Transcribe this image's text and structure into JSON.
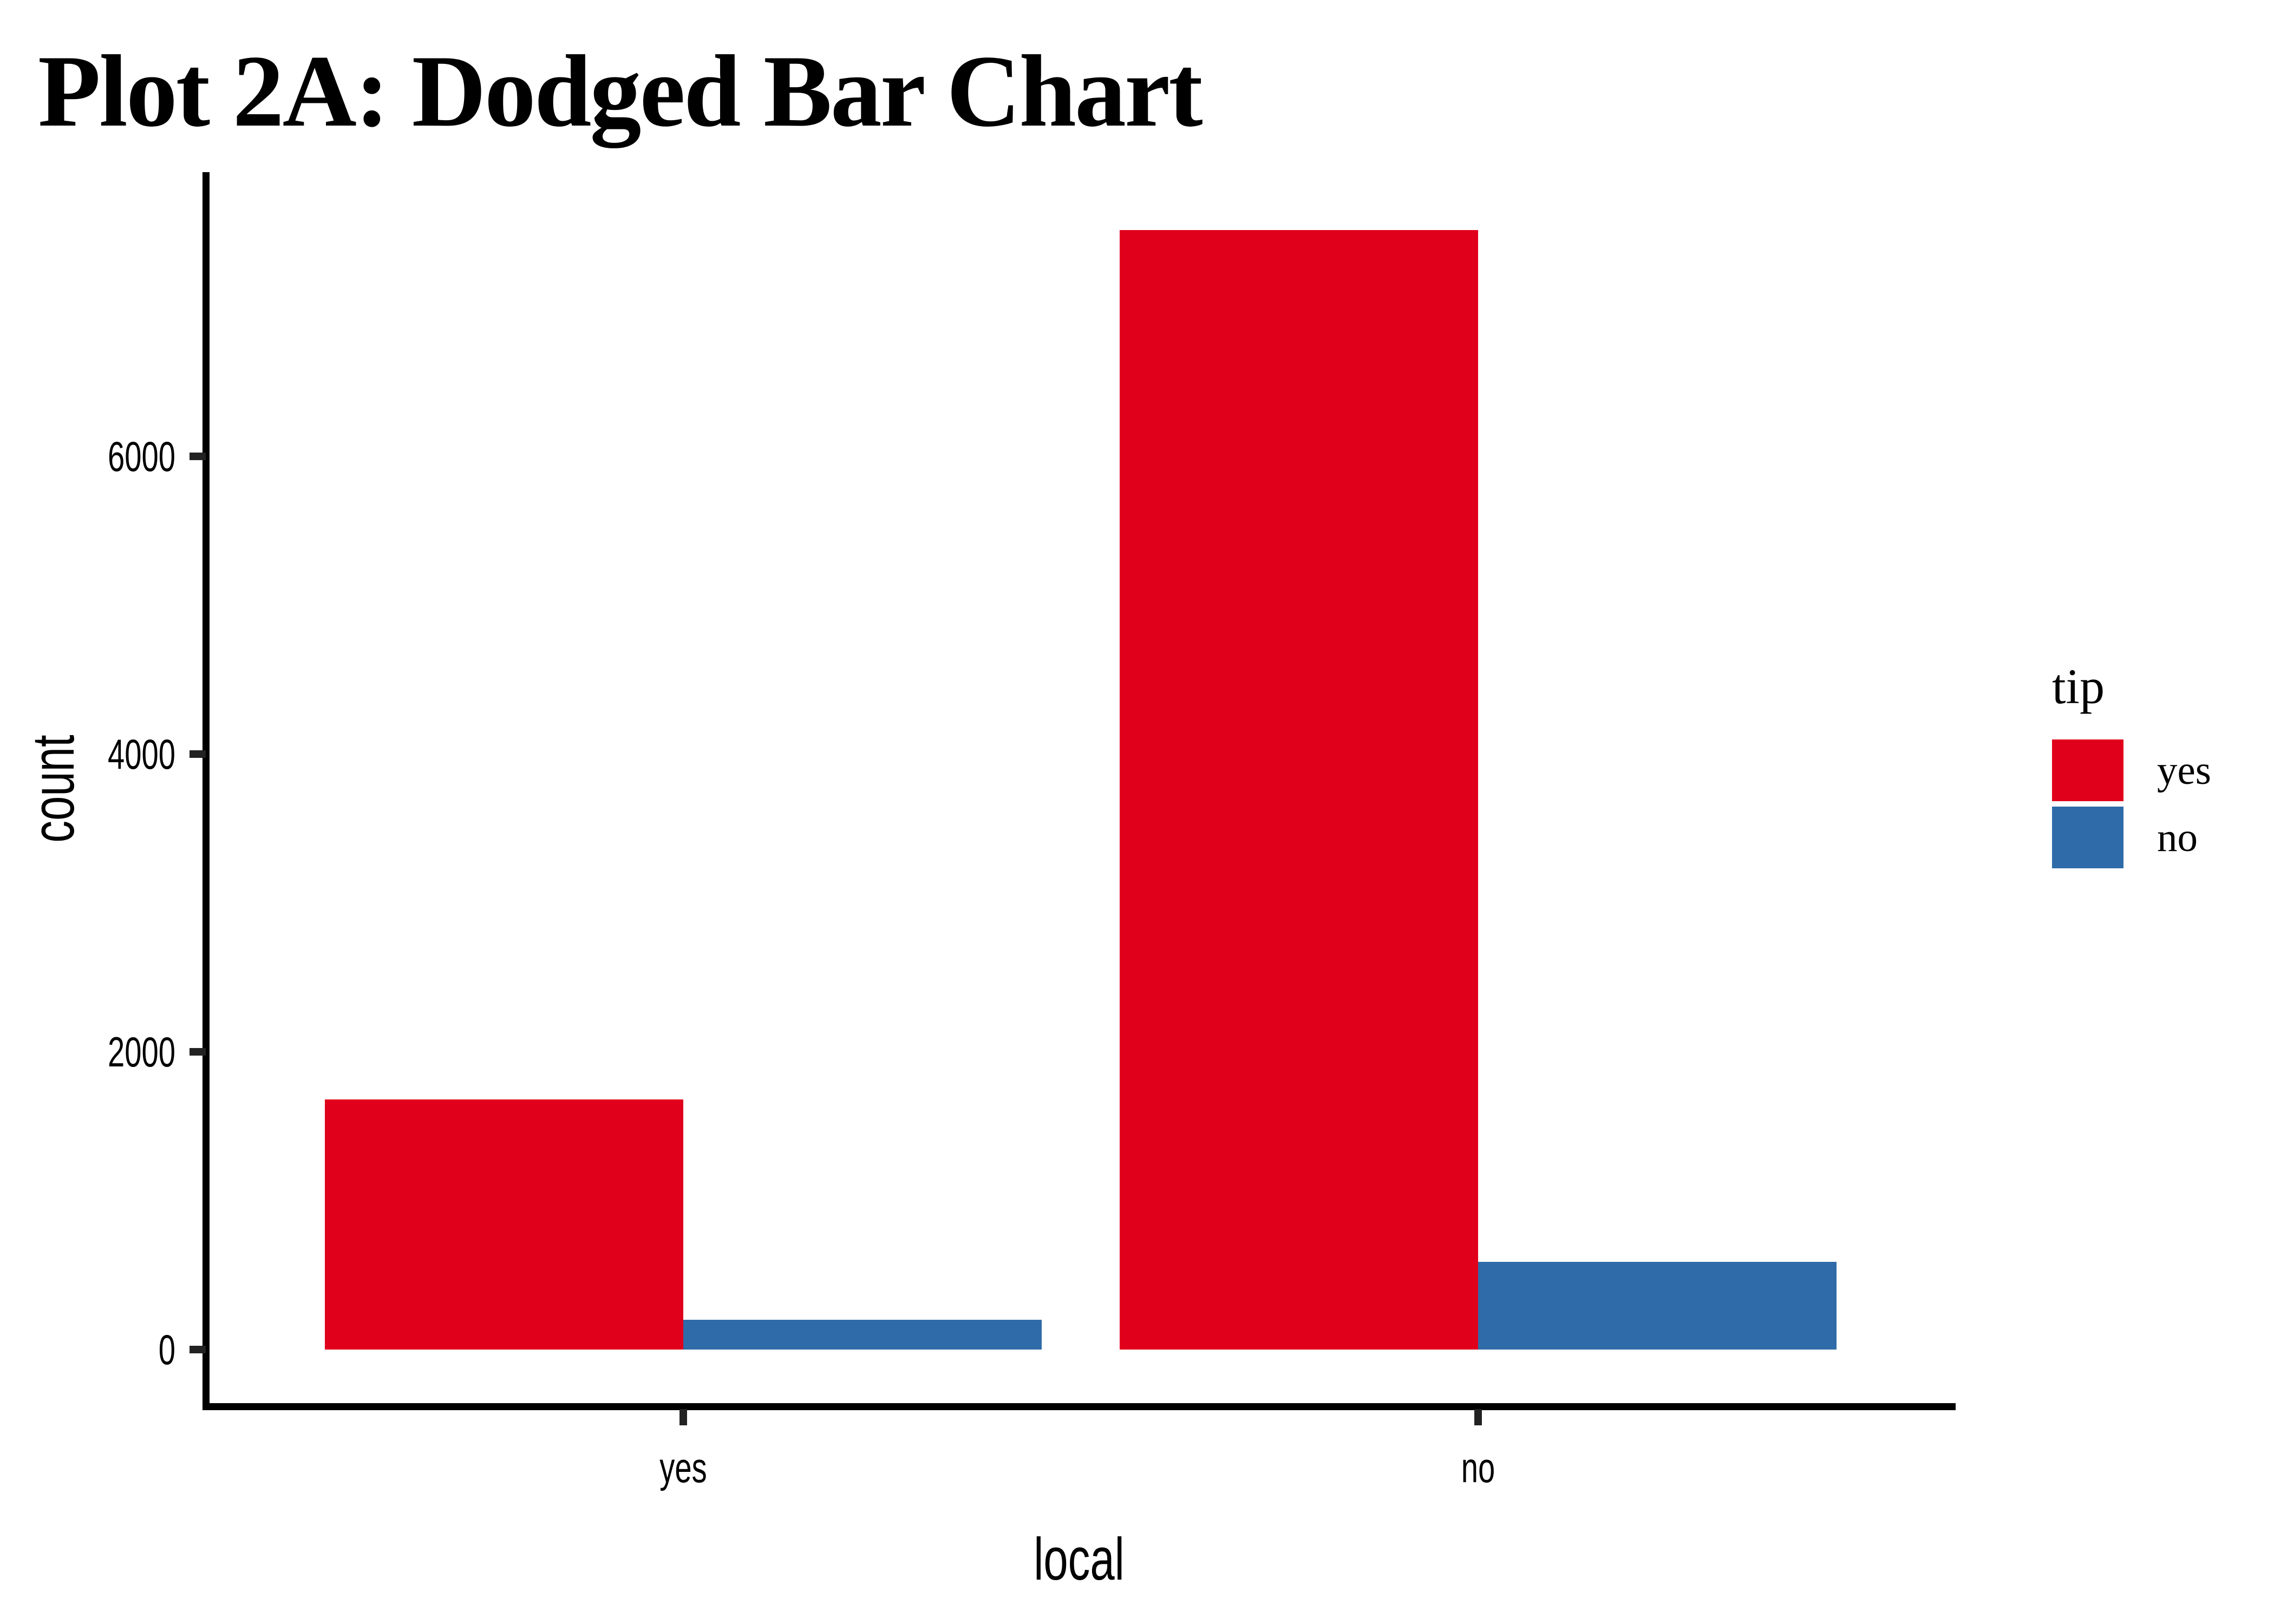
{
  "title": "Plot 2A: Dodged Bar Chart",
  "chart_data": {
    "type": "bar",
    "mode": "dodged",
    "title": "Plot 2A: Dodged Bar Chart",
    "xlabel": "local",
    "ylabel": "count",
    "categories": [
      "yes",
      "no"
    ],
    "series": [
      {
        "name": "yes",
        "color": "#e0001b",
        "values": [
          1680,
          7520
        ]
      },
      {
        "name": "no",
        "color": "#2f6ba8",
        "values": [
          200,
          590
        ]
      }
    ],
    "legend": {
      "title": "tip",
      "position": "right",
      "entries": [
        "yes",
        "no"
      ]
    },
    "yticks": [
      0,
      2000,
      4000,
      6000
    ],
    "ylim": [
      0,
      7900
    ],
    "grid": false,
    "background": "#ffffff",
    "axis_color": "#000000",
    "tick_color": "#222222"
  }
}
